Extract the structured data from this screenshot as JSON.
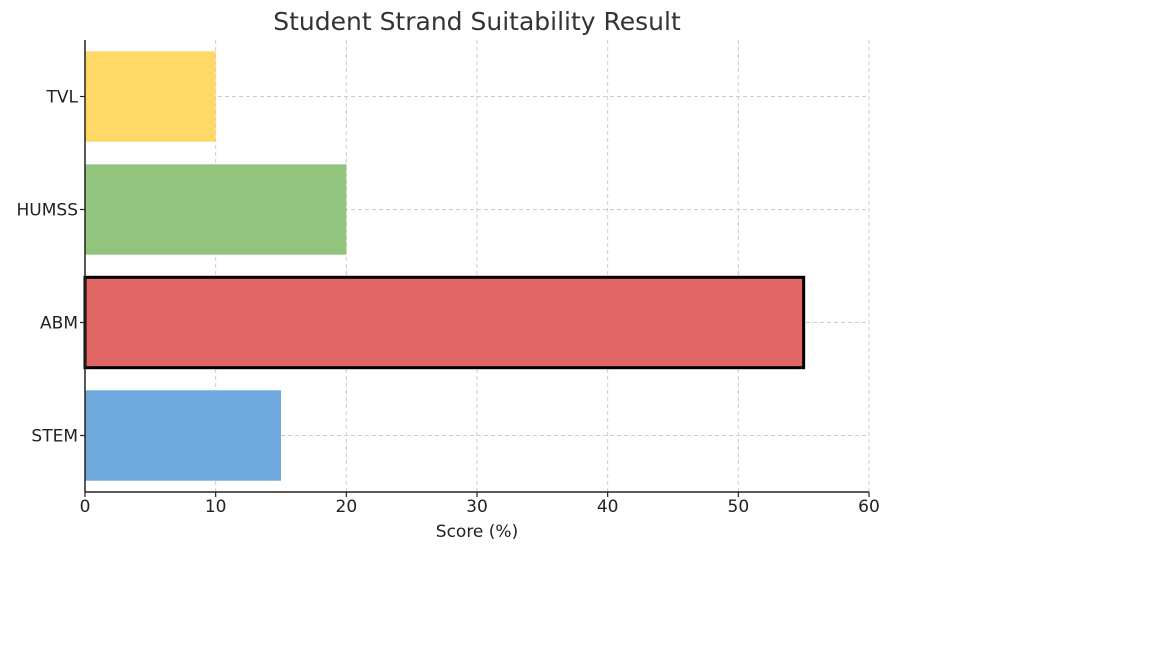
{
  "chart_data": {
    "type": "bar",
    "orientation": "horizontal",
    "title": "Student Strand Suitability Result",
    "xlabel": "Score (%)",
    "ylabel": "",
    "xlim": [
      0,
      60
    ],
    "xticks": [
      0,
      10,
      20,
      30,
      40,
      50,
      60
    ],
    "grid": true,
    "categories": [
      "STEM",
      "ABM",
      "HUMSS",
      "TVL"
    ],
    "values": [
      15,
      55,
      20,
      10
    ],
    "colors": [
      "#6fa8dc",
      "#e06666",
      "#93c47d",
      "#ffd966"
    ],
    "highlighted_category": "ABM",
    "highlight_edge_color": "#000000"
  }
}
